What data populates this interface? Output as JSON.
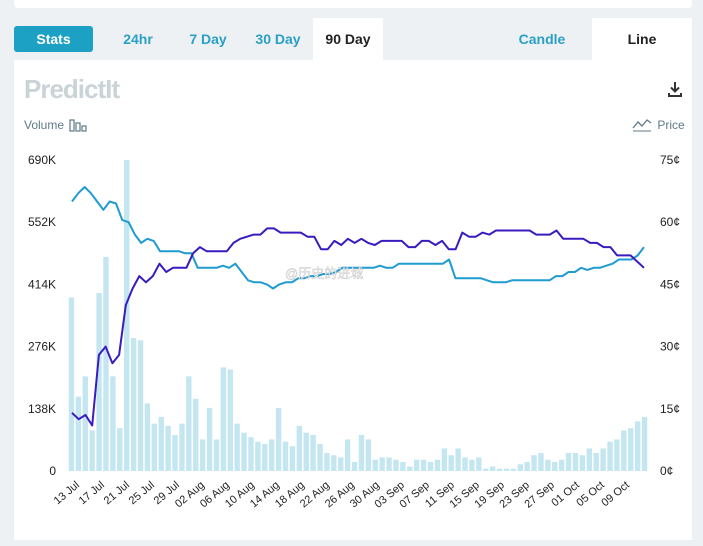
{
  "tabs": {
    "stats": "Stats",
    "ranges": [
      "24hr",
      "7 Day",
      "30 Day",
      "90 Day"
    ],
    "active_range": "90 Day",
    "types": [
      "Candle",
      "Line"
    ],
    "active_type": "Line"
  },
  "logo": "PredictIt",
  "legend": {
    "volume": "Volume",
    "price": "Price"
  },
  "watermark": "@历史的进城",
  "colors": {
    "price_line": "#1f9bd0",
    "price_line2": "#3a1bbf",
    "volume_bar": "#c3e6f0",
    "accent": "#1ca0c4"
  },
  "chart_data": {
    "type": "bar",
    "x_tick_labels": [
      "13 Jul",
      "17 Jul",
      "21 Jul",
      "25 Jul",
      "29 Jul",
      "02 Aug",
      "06 Aug",
      "10 Aug",
      "14 Aug",
      "18 Aug",
      "22 Aug",
      "26 Aug",
      "30 Aug",
      "03 Sep",
      "07 Sep",
      "11 Sep",
      "15 Sep",
      "19 Sep",
      "23 Sep",
      "27 Sep",
      "01 Oct",
      "05 Oct",
      "09 Oct"
    ],
    "left_axis": {
      "label": "Volume",
      "ticks": [
        "0",
        "138K",
        "276K",
        "414K",
        "552K",
        "690K"
      ],
      "ylim": [
        0,
        690000
      ]
    },
    "right_axis": {
      "label": "Price",
      "ticks": [
        "0¢",
        "15¢",
        "30¢",
        "45¢",
        "60¢",
        "75¢"
      ],
      "ylim": [
        0,
        75
      ]
    },
    "volume": [
      385000,
      165000,
      210000,
      90000,
      395000,
      475000,
      210000,
      95000,
      690000,
      295000,
      290000,
      150000,
      105000,
      120000,
      100000,
      80000,
      105000,
      210000,
      160000,
      70000,
      140000,
      70000,
      230000,
      225000,
      105000,
      85000,
      75000,
      65000,
      60000,
      70000,
      140000,
      65000,
      55000,
      100000,
      85000,
      80000,
      60000,
      40000,
      35000,
      30000,
      70000,
      20000,
      80000,
      70000,
      25000,
      30000,
      30000,
      25000,
      20000,
      10000,
      25000,
      25000,
      20000,
      25000,
      50000,
      35000,
      50000,
      30000,
      25000,
      30000,
      5000,
      10000,
      5000,
      5000,
      5000,
      15000,
      20000,
      35000,
      40000,
      25000,
      20000,
      25000,
      40000,
      40000,
      35000,
      50000,
      40000,
      50000,
      65000,
      70000,
      90000,
      95000,
      110000,
      120000
    ],
    "series": [
      {
        "values": [
          65,
          67,
          68.5,
          67,
          65,
          63,
          65,
          64.5,
          60.5,
          60,
          57,
          55,
          56,
          55.5,
          53,
          53,
          53,
          53,
          52.5,
          52.5,
          49,
          49,
          49,
          49,
          49.5,
          49,
          50,
          48,
          46,
          45.5,
          45.5,
          45,
          44,
          45,
          45.5,
          45.5,
          46.5,
          46.5,
          47,
          47,
          47.5,
          47.5,
          48,
          49,
          49,
          49,
          49,
          49,
          49,
          49.5,
          49,
          49,
          50,
          50,
          50,
          50,
          50,
          50,
          50,
          50,
          51,
          46.5,
          46.5,
          46.5,
          46.5,
          46.5,
          46,
          45.5,
          45.5,
          45.5,
          46,
          46,
          46,
          46,
          46,
          46,
          46,
          47,
          47,
          48,
          48,
          49,
          48.5,
          49,
          49,
          49.5,
          50,
          51,
          51,
          51,
          52,
          54
        ]
      },
      {
        "values": [
          14,
          12.5,
          13.5,
          11,
          28,
          30,
          26,
          28,
          40,
          44,
          47,
          45.5,
          47,
          50,
          48,
          49,
          49,
          49,
          52.5,
          54,
          53,
          53,
          53,
          53,
          55,
          56,
          56.5,
          57,
          57,
          58.5,
          58.5,
          57.5,
          57.5,
          57.5,
          57.5,
          56.5,
          56.5,
          53.5,
          53.5,
          55.5,
          54.5,
          56,
          55,
          56,
          55,
          54.5,
          55.5,
          55.5,
          55.5,
          55.5,
          54,
          54,
          55.5,
          55.5,
          54.5,
          55.5,
          53.5,
          53.5,
          57.5,
          56.5,
          56.5,
          57.5,
          57,
          58,
          58,
          58,
          58,
          58,
          58,
          57,
          57,
          57,
          58,
          56,
          56,
          56,
          56,
          55,
          55,
          54,
          54,
          52,
          52,
          52,
          50.5,
          49
        ]
      }
    ]
  }
}
